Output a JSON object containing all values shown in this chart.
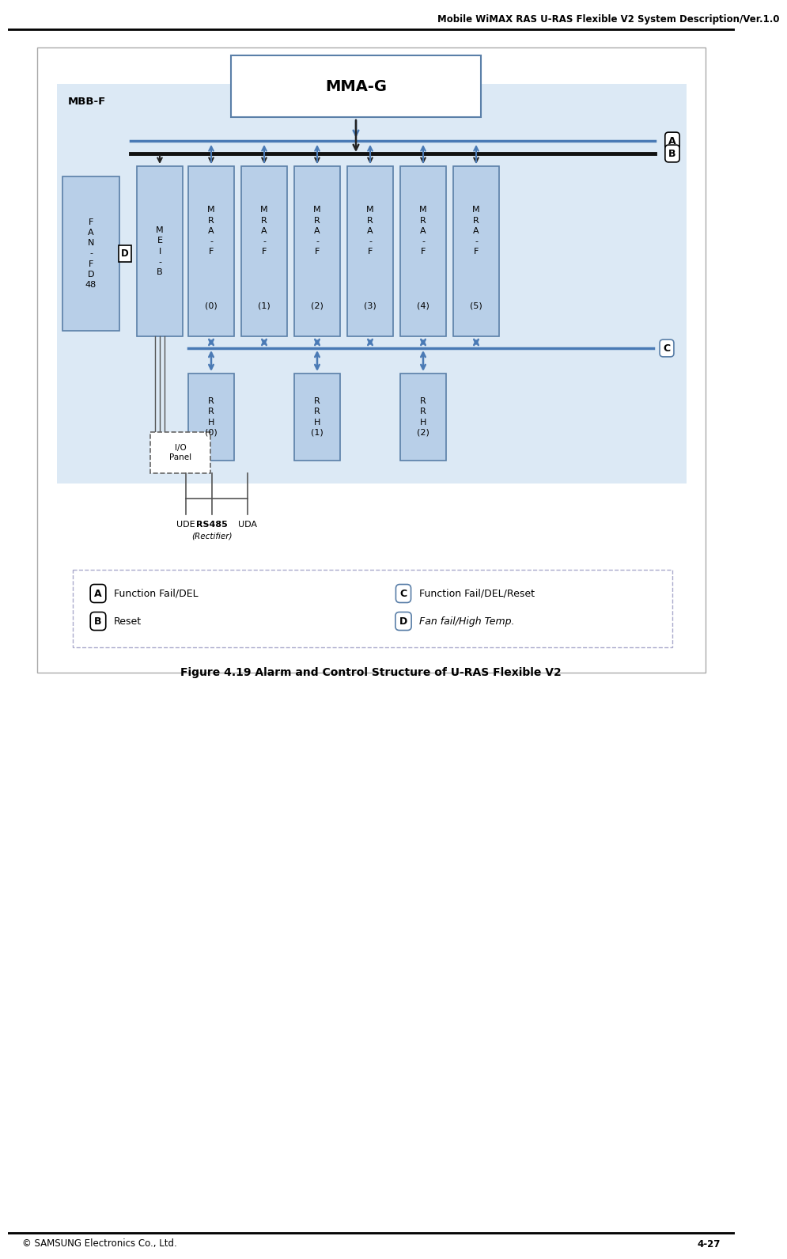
{
  "title_header": "Mobile WiMAX RAS U-RAS Flexible V2 System Description/Ver.1.0",
  "figure_caption": "Figure 4.19 Alarm and Control Structure of U-RAS Flexible V2",
  "footer_left": "© SAMSUNG Electronics Co., Ltd.",
  "footer_right": "4-27",
  "bg_color": "#ffffff",
  "light_blue_bg": "#dce9f5",
  "box_fill": "#b8cfe8",
  "box_stroke": "#5a7fa8",
  "dark_line": "#222222",
  "arrow_color_blue": "#4a7ab5",
  "arrow_color_dark": "#222222",
  "mma_fill": "#ffffff",
  "mma_stroke": "#5a7fa8",
  "bus_blue": "#4a7ab5",
  "bus_black": "#111111"
}
